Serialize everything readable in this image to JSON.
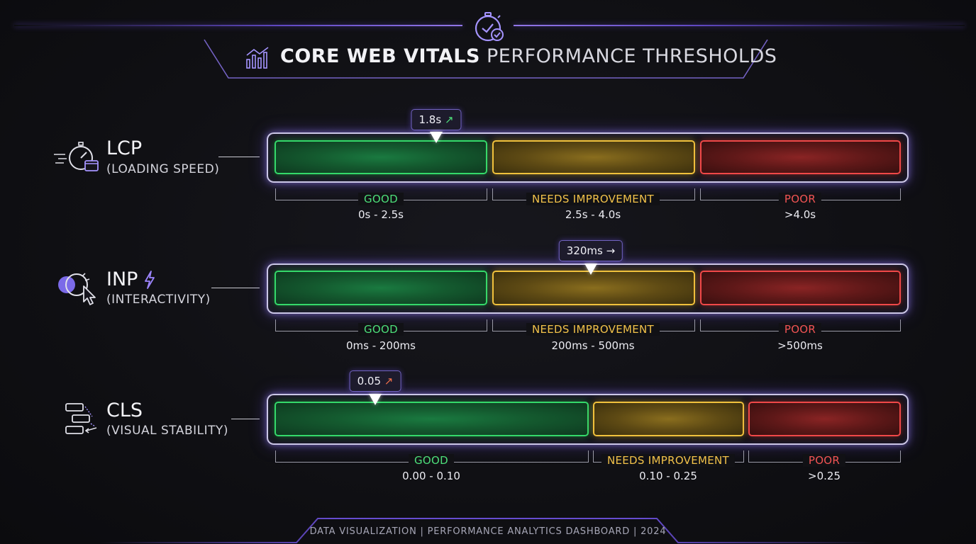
{
  "header": {
    "title_bold": "CORE WEB VITALS",
    "title_rest": "PERFORMANCE THRESHOLDS",
    "top_icon": "stopwatch-check-icon",
    "title_icon": "bar-chart-trend-icon"
  },
  "footer": {
    "text": "DATA VISUALIZATION | PERFORMANCE ANALYTICS DASHBOARD | 2024"
  },
  "colors": {
    "good": "#34d96a",
    "needs_improvement": "#f0c13c",
    "poor": "#f04848",
    "accent": "#7c5cff"
  },
  "chart_data": [
    {
      "type": "bar",
      "metric": "LCP",
      "subtitle": "(LOADING SPEED)",
      "icon": "stopwatch-window-icon",
      "bands": [
        {
          "name": "GOOD",
          "range": "0s - 2.5s",
          "from": 0,
          "to": 2.5
        },
        {
          "name": "NEEDS IMPROVEMENT",
          "range": "2.5s - 4.0s",
          "from": 2.5,
          "to": 4.0
        },
        {
          "name": "POOR",
          "range": ">4.0s",
          "from": 4.0,
          "to": 5.5
        }
      ],
      "marker": {
        "label": "1.8s",
        "value": 1.8,
        "trend": "↗",
        "trend_class": "trend-up-green"
      }
    },
    {
      "type": "bar",
      "metric": "INP",
      "subtitle": "(INTERACTIVITY)",
      "icon": "cursor-click-icon",
      "title_icon": "lightning-icon",
      "bands": [
        {
          "name": "GOOD",
          "range": "0ms - 200ms",
          "from": 0,
          "to": 200
        },
        {
          "name": "NEEDS IMPROVEMENT",
          "range": "200ms - 500ms",
          "from": 200,
          "to": 500
        },
        {
          "name": "POOR",
          "range": ">500ms",
          "from": 500,
          "to": 800
        }
      ],
      "marker": {
        "label": "320ms",
        "value": 320,
        "trend": "→",
        "trend_class": "trend-right"
      }
    },
    {
      "type": "bar",
      "metric": "CLS",
      "subtitle": "(VISUAL STABILITY)",
      "icon": "layout-shift-icon",
      "bands": [
        {
          "name": "GOOD",
          "range": "0.00 - 0.10",
          "from": 0,
          "to": 0.1
        },
        {
          "name": "NEEDS IMPROVEMENT",
          "range": "0.10 - 0.25",
          "from": 0.1,
          "to": 0.25
        },
        {
          "name": "POOR",
          "range": ">0.25",
          "from": 0.25,
          "to": 0.33
        }
      ],
      "marker": {
        "label": "0.05",
        "value": 0.05,
        "trend": "↗",
        "trend_class": "trend-up-red"
      }
    }
  ]
}
